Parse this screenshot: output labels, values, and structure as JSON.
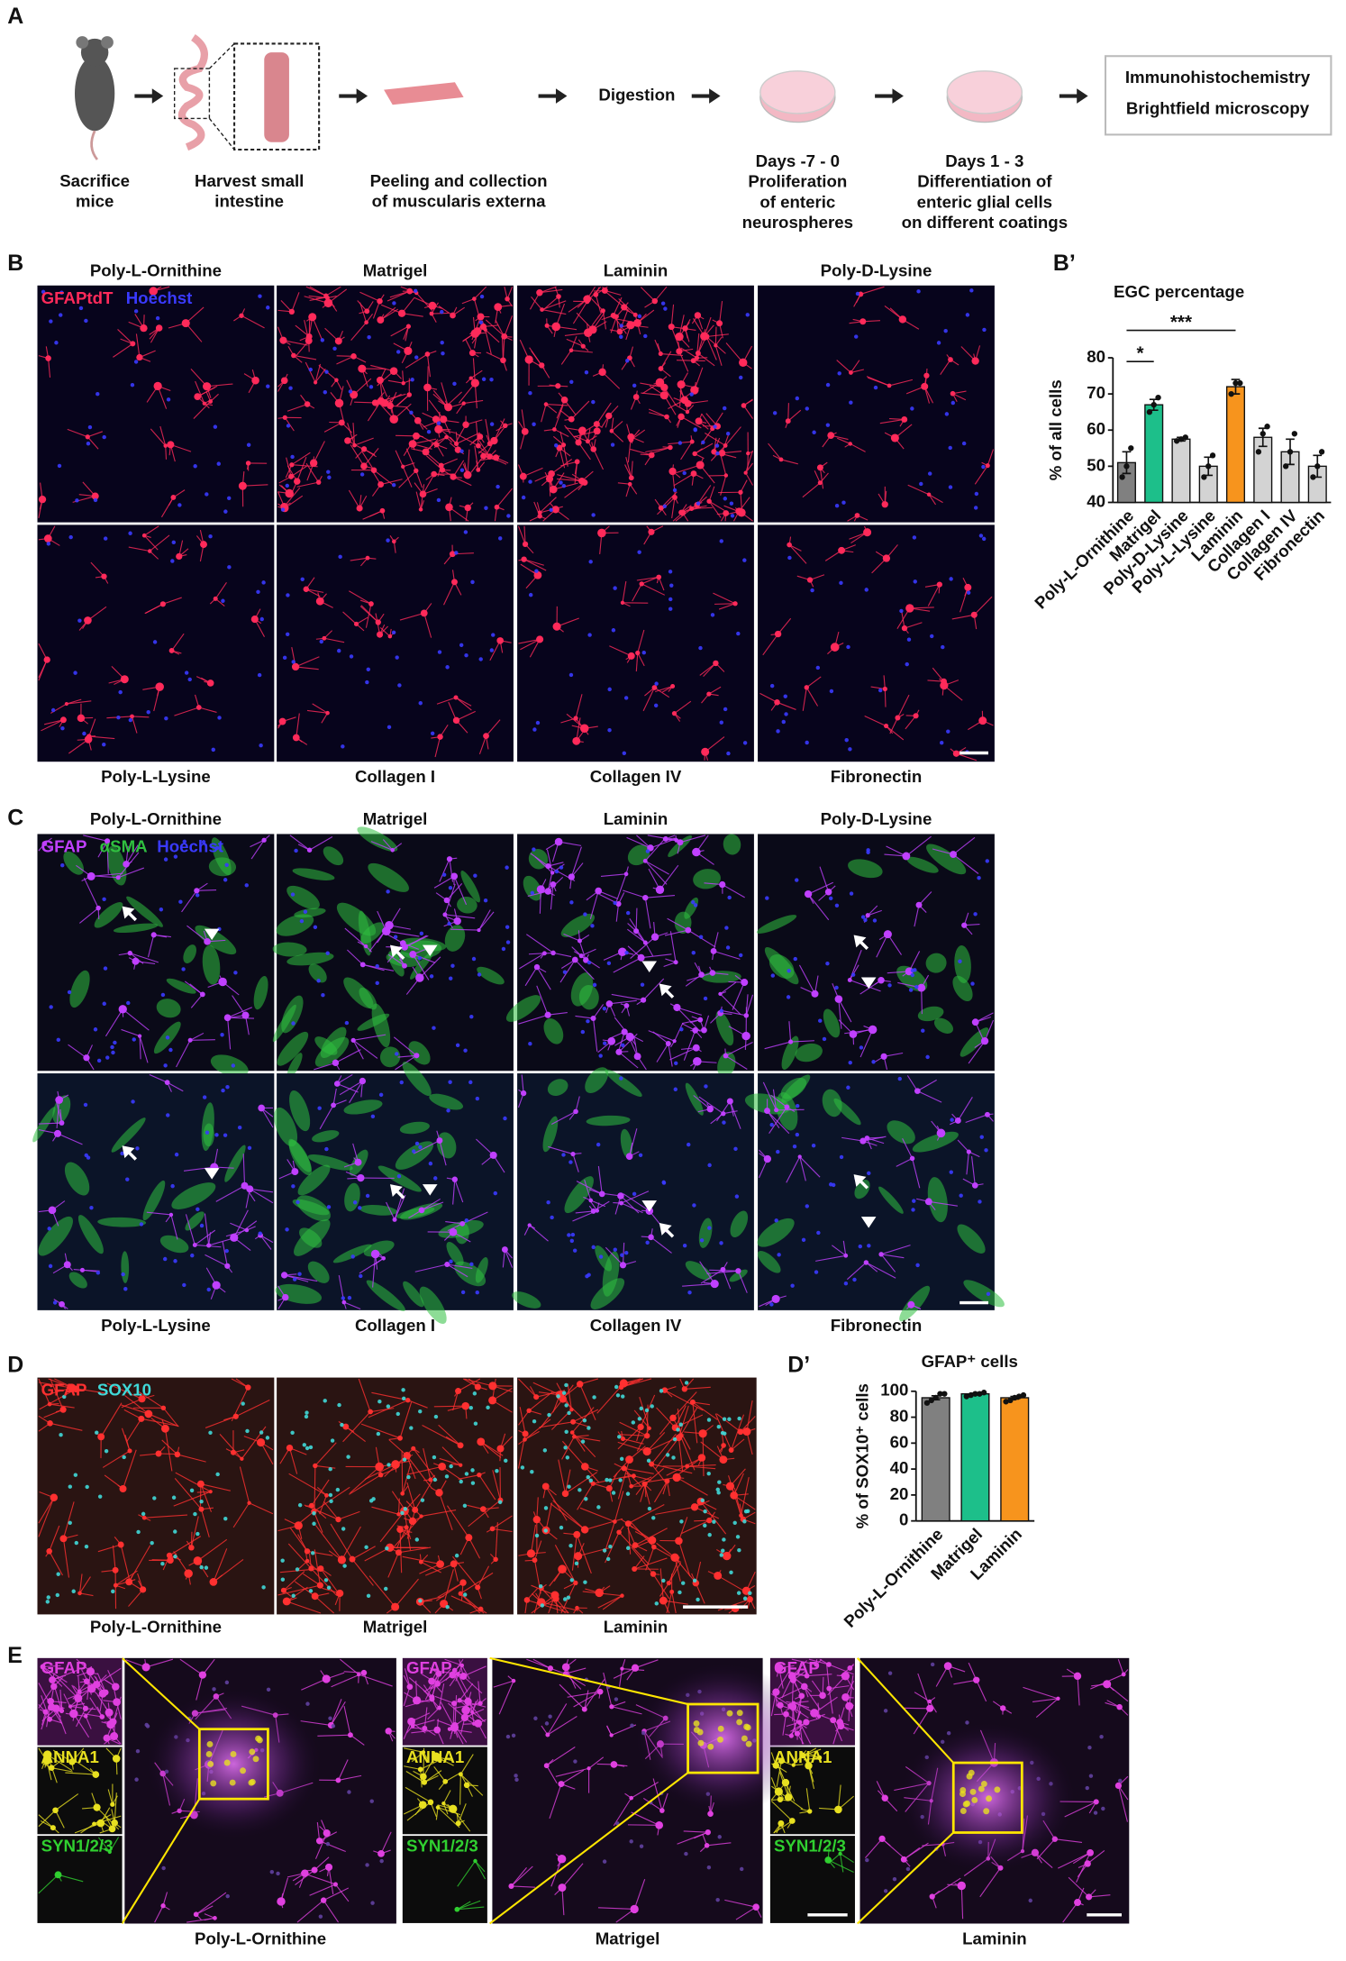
{
  "panel_a": {
    "label": "A",
    "steps": [
      {
        "lines": [
          "Sacrifice",
          "mice"
        ]
      },
      {
        "lines": [
          "Harvest small",
          "intestine"
        ]
      },
      {
        "lines": [
          "Peeling and collection",
          "of muscularis externa"
        ]
      },
      {
        "lines": [
          "Days -7 - 0",
          "Proliferation",
          "of enteric",
          "neurospheres"
        ]
      },
      {
        "lines": [
          "Days 1 - 3",
          "Differentiation of",
          "enteric glial cells",
          "on different coatings"
        ]
      }
    ],
    "digestion": "Digestion",
    "readouts": [
      "Immunohistochemistry",
      "Brightfield microscopy"
    ]
  },
  "panel_b": {
    "label": "B",
    "stains": [
      {
        "name": "GFAPtdT",
        "color": "#ff2a5a"
      },
      {
        "name": "Hoechst",
        "color": "#3a3aff"
      }
    ],
    "top_row": [
      "Poly-L-Ornithine",
      "Matrigel",
      "Laminin",
      "Poly-D-Lysine"
    ],
    "bottom_row": [
      "Poly-L-Lysine",
      "Collagen I",
      "Collagen IV",
      "Fibronectin"
    ]
  },
  "panel_c": {
    "label": "C",
    "stains": [
      {
        "name": "GFAP",
        "color": "#c040ff"
      },
      {
        "name": "αSMA",
        "color": "#30c040"
      },
      {
        "name": "Hoechst",
        "color": "#3a3aff"
      }
    ],
    "top_row": [
      "Poly-L-Ornithine",
      "Matrigel",
      "Laminin",
      "Poly-D-Lysine"
    ],
    "bottom_row": [
      "Poly-L-Lysine",
      "Collagen I",
      "Collagen IV",
      "Fibronectin"
    ]
  },
  "panel_d": {
    "label": "D",
    "stains": [
      {
        "name": "GFAP",
        "color": "#ff3030"
      },
      {
        "name": "SOX10",
        "color": "#40d8d8"
      }
    ],
    "conditions": [
      "Poly-L-Ornithine",
      "Matrigel",
      "Laminin"
    ]
  },
  "panel_e": {
    "label": "E",
    "channels": [
      {
        "name": "GFAP",
        "color": "#e040e0"
      },
      {
        "name": "ANNA1",
        "color": "#e8e020"
      },
      {
        "name": "SYN1/2/3",
        "color": "#30d030"
      }
    ],
    "conditions": [
      "Poly-L-Ornithine",
      "Matrigel",
      "Laminin"
    ]
  },
  "chart_data": [
    {
      "type": "bar",
      "label": "B’",
      "title": "EGC percentage",
      "ylabel": "% of all cells",
      "categories": [
        "Poly-L-Ornithine",
        "Matrigel",
        "Poly-D-Lysine",
        "Poly-L-Lysine",
        "Laminin",
        "Collagen I",
        "Collagen IV",
        "Fibronectin"
      ],
      "values": [
        51,
        67,
        57.5,
        50,
        72,
        58,
        54,
        50
      ],
      "errors": [
        3,
        1.5,
        0.5,
        2.5,
        2,
        2.5,
        3.5,
        3
      ],
      "points": [
        [
          47,
          50,
          55
        ],
        [
          65,
          67,
          69
        ],
        [
          57,
          57.5,
          58
        ],
        [
          47,
          50,
          53
        ],
        [
          70,
          73,
          73
        ],
        [
          54,
          59,
          61
        ],
        [
          50,
          54,
          59
        ],
        [
          47,
          50,
          54
        ]
      ],
      "colors": [
        "#808080",
        "#1dbf8a",
        "#d3d3d3",
        "#d3d3d3",
        "#f7941d",
        "#d3d3d3",
        "#d3d3d3",
        "#d3d3d3"
      ],
      "ylim": [
        40,
        80
      ],
      "yticks": [
        40,
        50,
        60,
        70,
        80
      ],
      "significance": [
        "*",
        "***"
      ]
    },
    {
      "type": "bar",
      "label": "D’",
      "title": "GFAP⁺ cells",
      "ylabel": "% of SOX10⁺ cells",
      "categories": [
        "Poly-L-Ornithine",
        "Matrigel",
        "Laminin"
      ],
      "values": [
        95,
        98,
        95
      ],
      "errors": [
        1.5,
        0.5,
        1
      ],
      "points": [
        [
          91,
          93,
          95,
          98,
          98
        ],
        [
          96,
          97,
          98,
          98,
          99
        ],
        [
          92,
          93,
          95,
          96,
          97
        ]
      ],
      "colors": [
        "#808080",
        "#1dbf8a",
        "#f7941d"
      ],
      "ylim": [
        0,
        100
      ],
      "yticks": [
        0,
        20,
        40,
        60,
        80,
        100
      ]
    }
  ]
}
